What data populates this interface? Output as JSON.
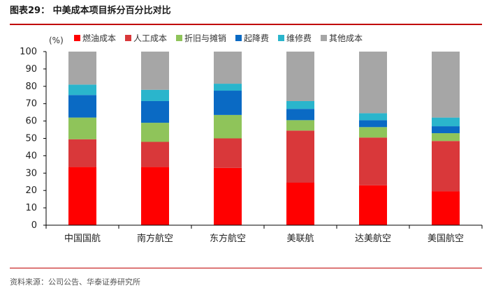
{
  "figure": {
    "title": "图表29：  中美成本项目拆分百分比对比",
    "source": "资料来源：公司公告、华泰证券研究所"
  },
  "chart_data": {
    "type": "bar",
    "stacked": true,
    "unit_label": "(%)",
    "categories": [
      "中国国航",
      "南方航空",
      "东方航空",
      "美联航",
      "达美航空",
      "美国航空"
    ],
    "ylim": [
      0,
      100
    ],
    "yticks": [
      0,
      10,
      20,
      30,
      40,
      50,
      60,
      70,
      80,
      90,
      100
    ],
    "grid": false,
    "legend_position": "top",
    "series": [
      {
        "name": "燃油成本",
        "color": "#ff0000",
        "values": [
          33.5,
          33.5,
          33,
          24.5,
          23,
          19.5
        ]
      },
      {
        "name": "人工成本",
        "color": "#d9383a",
        "values": [
          16,
          14.5,
          17,
          30,
          27.5,
          29
        ]
      },
      {
        "name": "折旧与摊销",
        "color": "#8fc45a",
        "values": [
          12.5,
          11,
          13.5,
          6,
          6,
          4.5
        ]
      },
      {
        "name": "起降费",
        "color": "#0a6ac4",
        "values": [
          13,
          12.5,
          14,
          6.5,
          4,
          4
        ]
      },
      {
        "name": "维修费",
        "color": "#2ab5cc",
        "values": [
          6,
          6.5,
          4,
          4.5,
          4,
          5
        ]
      },
      {
        "name": "其他成本",
        "color": "#a6a6a6",
        "values": [
          19,
          22,
          18.5,
          28.5,
          35.5,
          38
        ]
      }
    ]
  }
}
